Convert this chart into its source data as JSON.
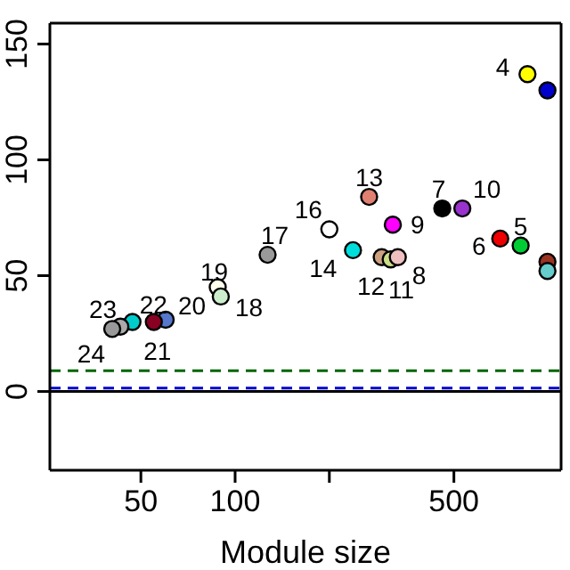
{
  "chart_data": {
    "type": "scatter",
    "xlabel": "Module size",
    "log": "x",
    "xlim": [
      25.6,
      1100
    ],
    "xticks": [
      50,
      100,
      {
        "value": 200,
        "label": null
      },
      500
    ],
    "ylim": [
      -34,
      159
    ],
    "yticks": [
      0,
      50,
      100,
      150
    ],
    "x": [
      859,
      995,
      268,
      459,
      532,
      319,
      200,
      703,
      817,
      127,
      238,
      294,
      314,
      331,
      995,
      995,
      88,
      90,
      60,
      55,
      47,
      43,
      40.5
    ],
    "values": [
      137,
      130,
      84,
      79,
      79,
      72,
      70,
      66,
      63,
      59,
      61,
      58,
      57,
      58,
      56,
      52,
      45,
      41,
      31,
      30,
      30,
      28,
      27
    ],
    "colors": [
      "#ffff00",
      "#0000cc",
      "#e08070",
      "#000000",
      "#9933cc",
      "#ff00ff",
      "#ffffff",
      "#ee0000",
      "#00cc33",
      "#999999",
      "#00dddd",
      "#cca080",
      "#ccdd88",
      "#f0c0c0",
      "#993322",
      "#66cccc",
      "#ffffee",
      "#cceecc",
      "#5577cc",
      "#880022",
      "#00cccc",
      "#aaaaaa",
      "#999999"
    ],
    "annotations": [
      {
        "text": "4",
        "x": 859,
        "y": 137
      },
      {
        "text": "13",
        "x": 268,
        "y": 84
      },
      {
        "text": "7",
        "x": 459,
        "y": 79
      },
      {
        "text": "10",
        "x": 532,
        "y": 79
      },
      {
        "text": "9",
        "x": 319,
        "y": 72
      },
      {
        "text": "16",
        "x": 200,
        "y": 70
      },
      {
        "text": "6",
        "x": 703,
        "y": 66
      },
      {
        "text": "5",
        "x": 817,
        "y": 63
      },
      {
        "text": "17",
        "x": 127,
        "y": 59
      },
      {
        "text": "14",
        "x": 238,
        "y": 61
      },
      {
        "text": "12",
        "x": 294,
        "y": 58
      },
      {
        "text": "11",
        "x": 314,
        "y": 57
      },
      {
        "text": "8",
        "x": 331,
        "y": 58
      },
      {
        "text": "19",
        "x": 88,
        "y": 45
      },
      {
        "text": "18",
        "x": 90,
        "y": 41
      },
      {
        "text": "20",
        "x": 60,
        "y": 31
      },
      {
        "text": "21",
        "x": 55,
        "y": 30
      },
      {
        "text": "22",
        "x": 47,
        "y": 30
      },
      {
        "text": "23",
        "x": 43,
        "y": 28
      },
      {
        "text": "24",
        "x": 40.5,
        "y": 27
      }
    ],
    "marker": "circle",
    "legend": false,
    "ref_lines": [
      {
        "axis": "y",
        "value": 0,
        "color": "#000000",
        "line_style": "solid"
      },
      {
        "axis": "y",
        "value": 9,
        "color": "#006600",
        "line_style": "dashed"
      },
      {
        "axis": "y",
        "value": 1.5,
        "color": "#0000cc",
        "line_style": "dashed"
      }
    ]
  }
}
